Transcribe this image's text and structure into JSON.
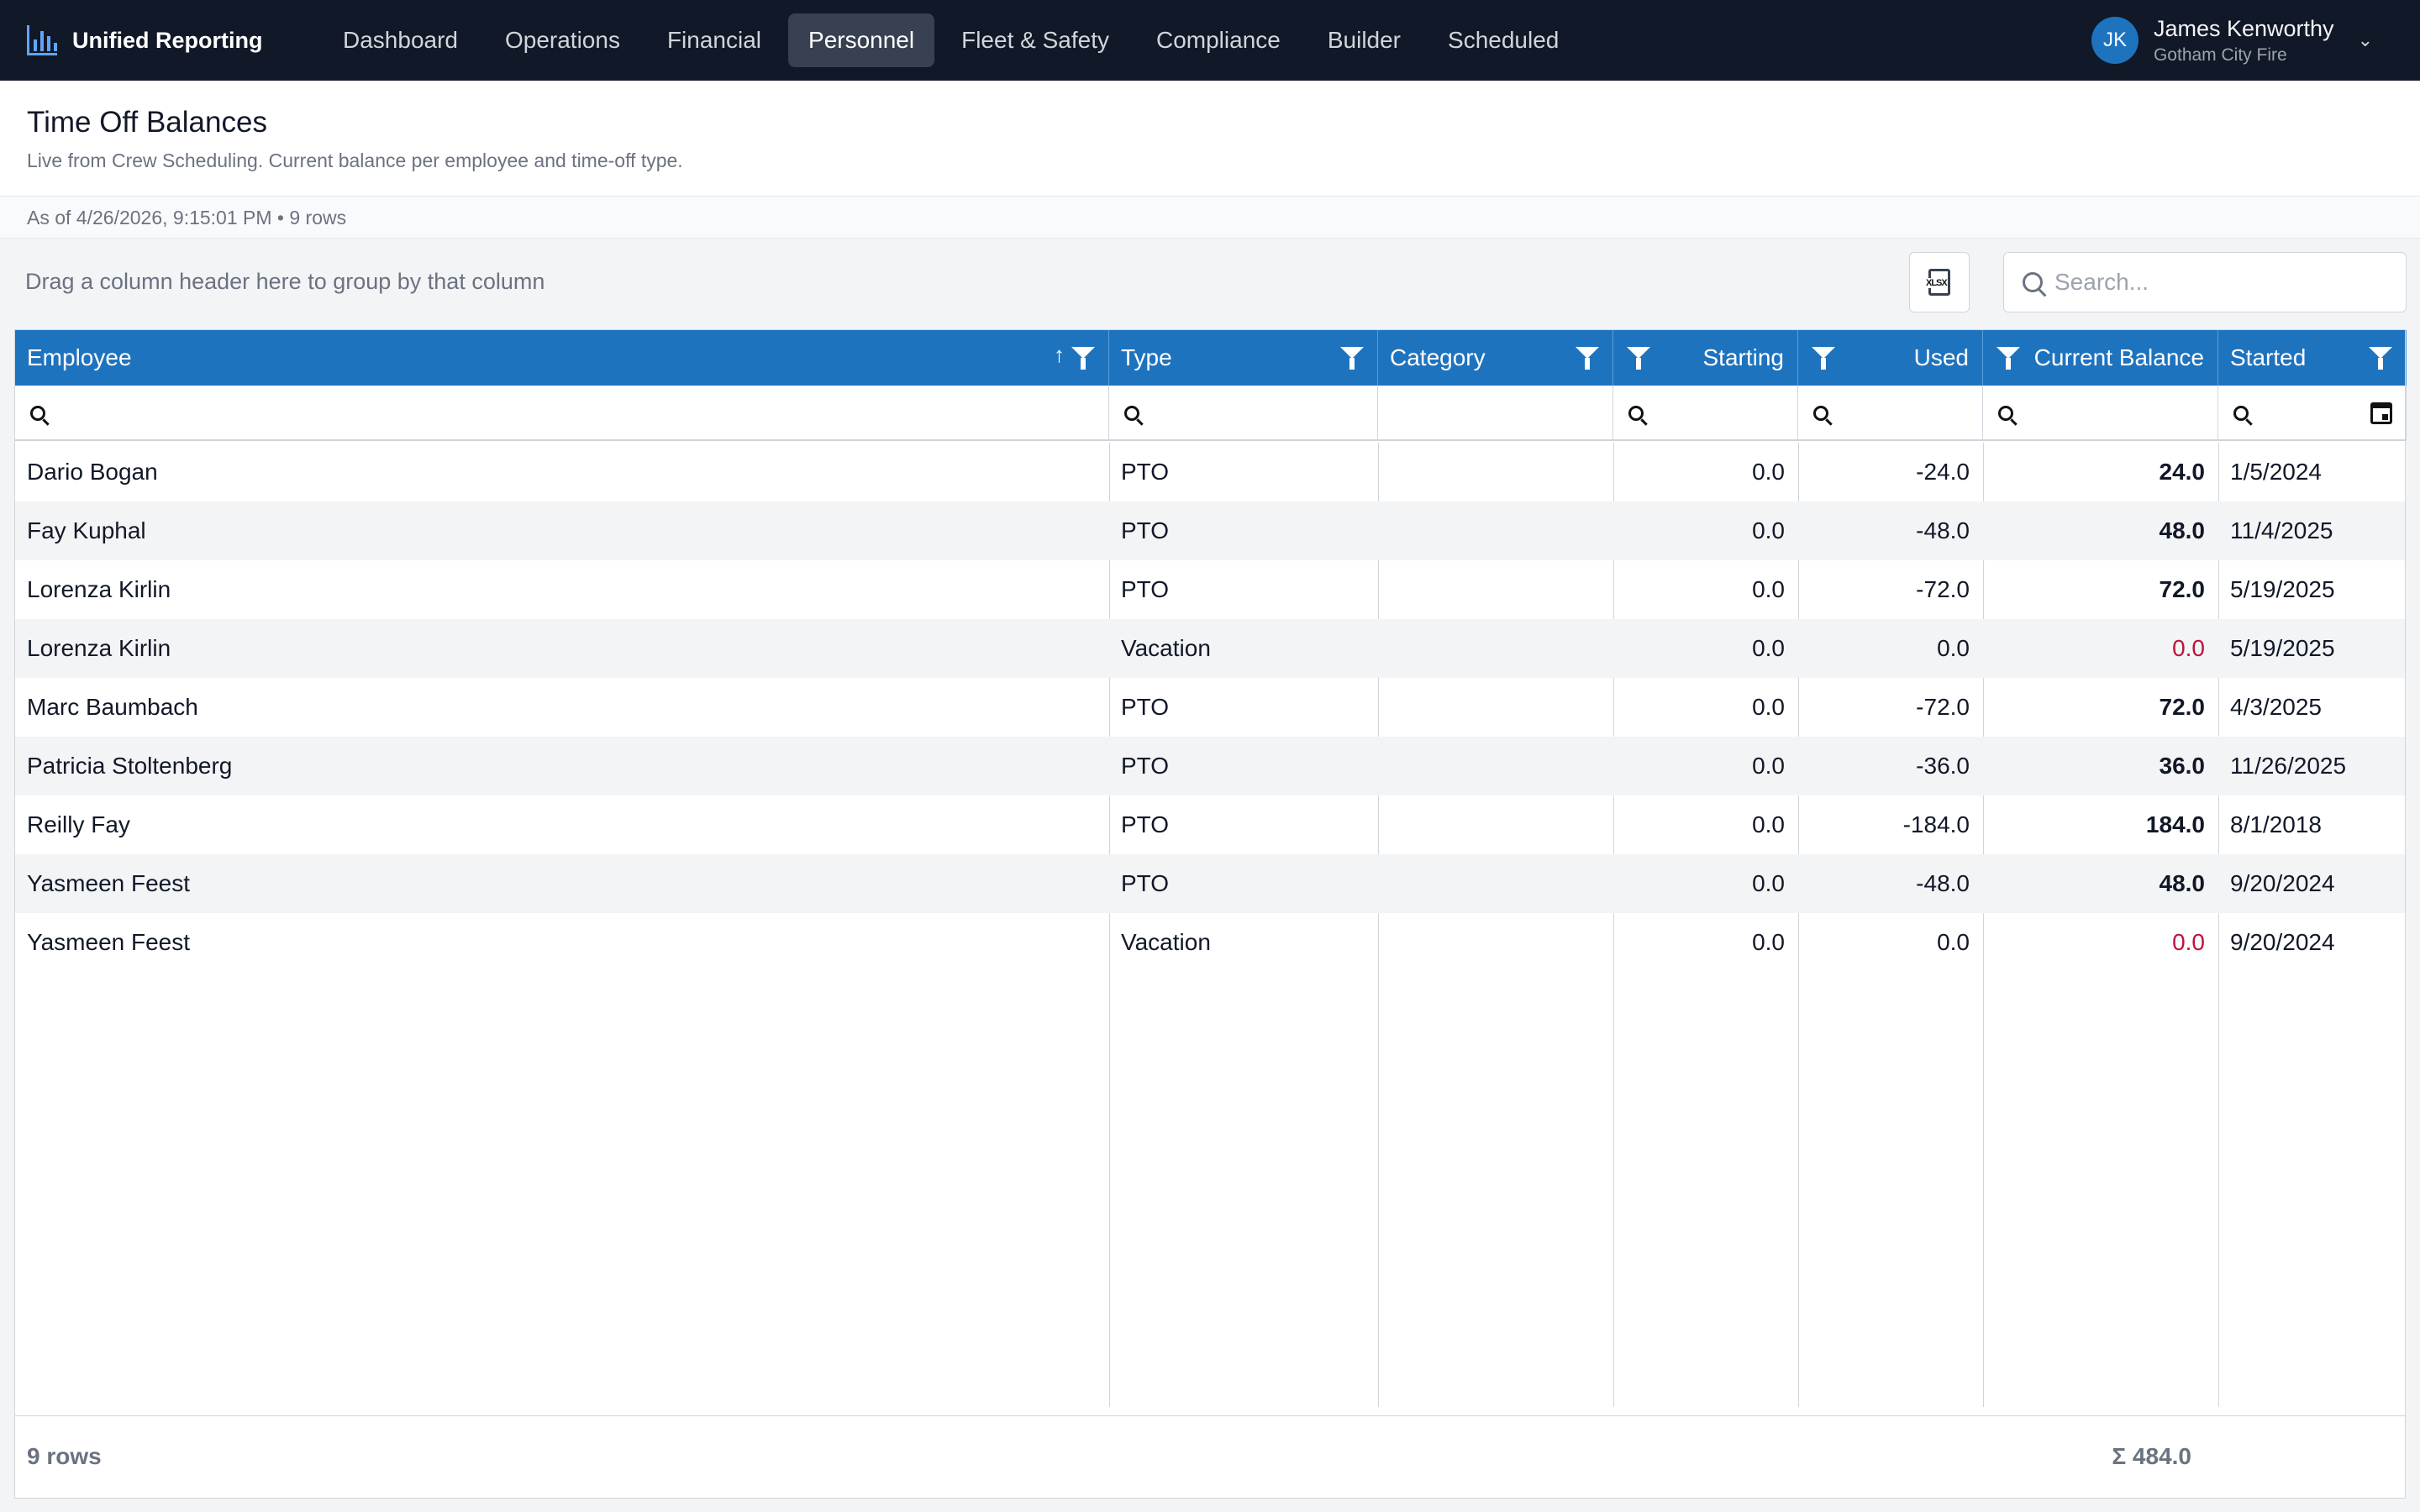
{
  "app": {
    "title": "Unified Reporting",
    "nav": [
      {
        "label": "Dashboard",
        "active": false
      },
      {
        "label": "Operations",
        "active": false
      },
      {
        "label": "Financial",
        "active": false
      },
      {
        "label": "Personnel",
        "active": true
      },
      {
        "label": "Fleet & Safety",
        "active": false
      },
      {
        "label": "Compliance",
        "active": false
      },
      {
        "label": "Builder",
        "active": false
      },
      {
        "label": "Scheduled",
        "active": false
      }
    ],
    "user": {
      "initials": "JK",
      "name": "James Kenworthy",
      "org": "Gotham City Fire"
    }
  },
  "page": {
    "title": "Time Off Balances",
    "subtitle": "Live from Crew Scheduling. Current balance per employee and time-off type.",
    "meta": "As of 4/26/2026, 9:15:01 PM • 9 rows"
  },
  "toolbar": {
    "group_hint": "Drag a column header here to group by that column",
    "export_icon": "xlsx-export-icon",
    "search_placeholder": "Search..."
  },
  "grid": {
    "columns": [
      {
        "key": "employee",
        "label": "Employee",
        "sorted": "asc"
      },
      {
        "key": "type",
        "label": "Type"
      },
      {
        "key": "category",
        "label": "Category"
      },
      {
        "key": "starting",
        "label": "Starting"
      },
      {
        "key": "used",
        "label": "Used"
      },
      {
        "key": "current",
        "label": "Current Balance"
      },
      {
        "key": "started",
        "label": "Started"
      }
    ],
    "rows": [
      {
        "employee": "Dario Bogan",
        "type": "PTO",
        "category": "",
        "starting": "0.0",
        "used": "-24.0",
        "current": "24.0",
        "started": "1/5/2024"
      },
      {
        "employee": "Fay Kuphal",
        "type": "PTO",
        "category": "",
        "starting": "0.0",
        "used": "-48.0",
        "current": "48.0",
        "started": "11/4/2025"
      },
      {
        "employee": "Lorenza Kirlin",
        "type": "PTO",
        "category": "",
        "starting": "0.0",
        "used": "-72.0",
        "current": "72.0",
        "started": "5/19/2025"
      },
      {
        "employee": "Lorenza Kirlin",
        "type": "Vacation",
        "category": "",
        "starting": "0.0",
        "used": "0.0",
        "current": "0.0",
        "started": "5/19/2025"
      },
      {
        "employee": "Marc Baumbach",
        "type": "PTO",
        "category": "",
        "starting": "0.0",
        "used": "-72.0",
        "current": "72.0",
        "started": "4/3/2025"
      },
      {
        "employee": "Patricia Stoltenberg",
        "type": "PTO",
        "category": "",
        "starting": "0.0",
        "used": "-36.0",
        "current": "36.0",
        "started": "11/26/2025"
      },
      {
        "employee": "Reilly Fay",
        "type": "PTO",
        "category": "",
        "starting": "0.0",
        "used": "-184.0",
        "current": "184.0",
        "started": "8/1/2018"
      },
      {
        "employee": "Yasmeen Feest",
        "type": "PTO",
        "category": "",
        "starting": "0.0",
        "used": "-48.0",
        "current": "48.0",
        "started": "9/20/2024"
      },
      {
        "employee": "Yasmeen Feest",
        "type": "Vacation",
        "category": "",
        "starting": "0.0",
        "used": "0.0",
        "current": "0.0",
        "started": "9/20/2024"
      }
    ],
    "footer": {
      "count": "9 rows",
      "sum": "Σ 484.0"
    }
  },
  "colors": {
    "nav_bg": "#111827",
    "header_bg": "#1e73be",
    "zero_balance": "#be123c"
  }
}
